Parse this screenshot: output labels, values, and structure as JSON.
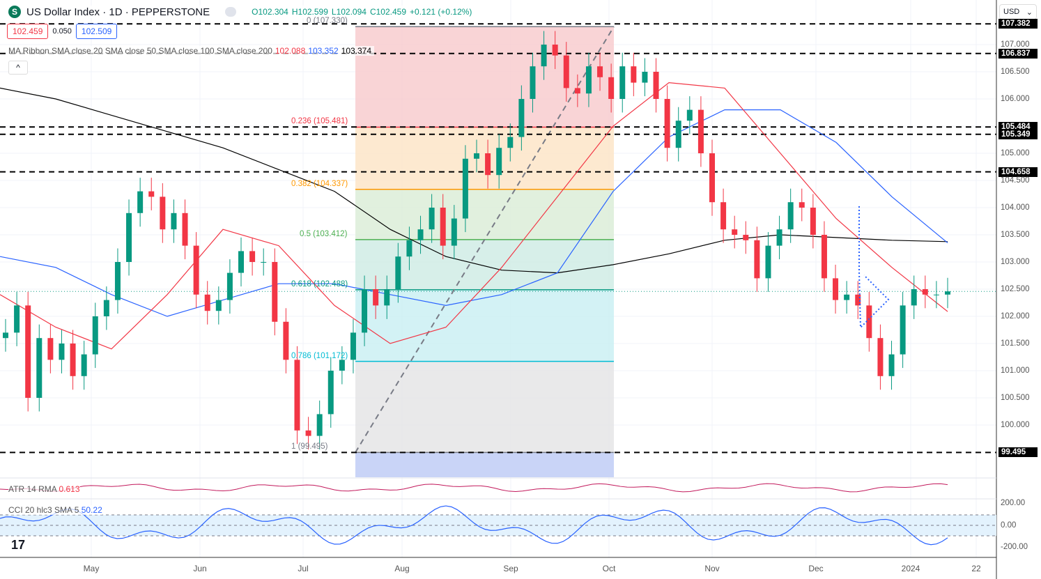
{
  "header": {
    "symbol": "US Dollar Index · 1D · PEPPERSTONE",
    "logo": "S",
    "open": "O102.304",
    "high": "H102.599",
    "low": "L102.094",
    "close": "C102.459",
    "change": "+0.121 (+0.12%)"
  },
  "bid": "102.459",
  "spread": "0.050",
  "ask": "102.509",
  "ma_ribbon": {
    "label": "MA Ribbon SMA close 20 SMA close 50 SMA close 100 SMA close 200",
    "v20": "102.088",
    "v50": "103.352",
    "v200": "103.374",
    "colors": {
      "sma20": "#f23645",
      "sma50": "#2962ff",
      "sma200": "#000000"
    }
  },
  "collapse_icon": "^",
  "currency": "USD",
  "atr": {
    "label": "ATR 14 RMA",
    "value": "0.613"
  },
  "cci": {
    "label": "CCI 20 hlc3 SMA 5",
    "value": "50.22"
  },
  "price_axis": [
    "107.000",
    "106.500",
    "106.000",
    "105.000",
    "104.500",
    "104.000",
    "103.500",
    "103.000",
    "102.500",
    "102.000",
    "101.500",
    "101.000",
    "100.500",
    "100.000"
  ],
  "cci_axis": [
    "200.00",
    "0.00",
    "-200.00"
  ],
  "marked_levels": [
    "107.382",
    "106.837",
    "105.484",
    "105.349",
    "104.658",
    "99.495"
  ],
  "time_axis": [
    "May",
    "Jun",
    "Jul",
    "Aug",
    "Sep",
    "Oct",
    "Nov",
    "Dec",
    "2024",
    "22"
  ],
  "fib": [
    {
      "label": "0 (107.330)",
      "price": 107.33,
      "color": "#787b86"
    },
    {
      "label": "0.236 (105.481)",
      "price": 105.481,
      "color": "#f23645"
    },
    {
      "label": "0.382 (104.337)",
      "price": 104.337,
      "color": "#ff9800"
    },
    {
      "label": "0.5 (103.412)",
      "price": 103.412,
      "color": "#4caf50"
    },
    {
      "label": "0.618 (102.488)",
      "price": 102.488,
      "color": "#089981"
    },
    {
      "label": "0.786 (101.172)",
      "price": 101.172,
      "color": "#00bcd4"
    },
    {
      "label": "1 (99.495)",
      "price": 99.495,
      "color": "#787b86"
    }
  ],
  "chart_data": {
    "type": "candlestick",
    "ylim": [
      99.0,
      107.5
    ],
    "closes": [
      101.7,
      102.2,
      100.5,
      101.6,
      101.2,
      101.5,
      100.9,
      101.3,
      102.0,
      102.3,
      103.0,
      103.9,
      104.3,
      104.2,
      103.6,
      103.9,
      103.3,
      102.4,
      102.1,
      102.3,
      102.8,
      103.2,
      103.0,
      103.0,
      101.9,
      101.2,
      99.9,
      99.8,
      100.2,
      101.0,
      101.2,
      101.7,
      102.5,
      102.2,
      102.5,
      103.1,
      103.4,
      103.6,
      104.0,
      103.3,
      103.8,
      104.9,
      105.0,
      104.6,
      105.1,
      105.3,
      106.0,
      106.6,
      107.0,
      106.8,
      106.2,
      106.1,
      106.6,
      106.4,
      106.0,
      106.6,
      106.3,
      106.5,
      106.0,
      105.1,
      105.6,
      105.8,
      105.0,
      104.1,
      103.6,
      103.5,
      103.4,
      102.7,
      103.3,
      103.6,
      104.1,
      104.0,
      103.5,
      102.7,
      102.3,
      102.4,
      102.2,
      101.6,
      100.9,
      101.3,
      102.2,
      102.5,
      102.4,
      102.4,
      102.459
    ],
    "sma20": [
      102.4,
      101.8,
      101.4,
      102.4,
      103.6,
      103.3,
      102.2,
      101.5,
      101.8,
      102.9,
      104.2,
      105.5,
      106.3,
      106.2,
      105.0,
      103.8,
      102.9,
      102.088
    ],
    "sma50": [
      103.1,
      102.9,
      102.4,
      102.0,
      102.3,
      102.6,
      102.6,
      102.4,
      102.2,
      102.4,
      102.8,
      104.3,
      105.3,
      105.8,
      105.8,
      105.2,
      104.2,
      103.352
    ],
    "sma200": [
      106.2,
      106.0,
      105.7,
      105.4,
      105.1,
      104.7,
      104.3,
      103.6,
      103.1,
      102.85,
      102.8,
      102.95,
      103.15,
      103.4,
      103.5,
      103.45,
      103.4,
      103.374
    ],
    "colors": {
      "up": "#089981",
      "down": "#f23645"
    }
  }
}
